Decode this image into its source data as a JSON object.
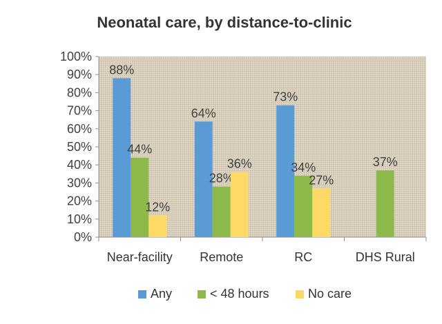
{
  "chart_data": {
    "type": "bar",
    "title": "Neonatal care, by distance-to-clinic",
    "xlabel": "",
    "ylabel": "",
    "ylim": [
      0,
      100
    ],
    "ytick_format": "percent",
    "yticks": [
      "0%",
      "10%",
      "20%",
      "30%",
      "40%",
      "50%",
      "60%",
      "70%",
      "80%",
      "90%",
      "100%"
    ],
    "categories": [
      "Near-facility",
      "Remote",
      "RC",
      "DHS Rural"
    ],
    "series": [
      {
        "name": "Any",
        "color": "#5B9BD5",
        "values": [
          88,
          64,
          73,
          null
        ]
      },
      {
        "name": "< 48 hours",
        "color": "#8DB84A",
        "values": [
          44,
          28,
          34,
          37
        ]
      },
      {
        "name": "No care",
        "color": "#FFD966",
        "values": [
          12,
          36,
          27,
          null
        ]
      }
    ],
    "data_labels": true,
    "legend_position": "bottom",
    "grid": false,
    "plot_background": "textured-beige"
  }
}
